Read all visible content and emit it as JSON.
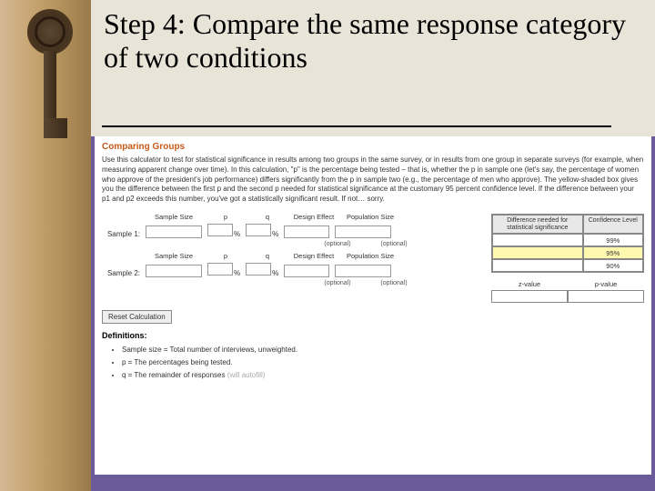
{
  "slide": {
    "title": "Step 4: Compare the same response category of two conditions"
  },
  "panel": {
    "heading": "Comparing Groups",
    "intro": "Use this calculator to test for statistical significance in results among two groups in the same survey, or in results from one group in separate surveys (for example, when measuring apparent change over time). In this calculation, \"p\" is the percentage being tested – that is, whether the p in sample one (let's say, the percentage of women who approve of the president's job performance) differs significantly from the p in sample two (e.g., the percentage of men who approve). The yellow-shaded box gives you the difference between the first p and the second p needed for statistical significance at the customary 95 percent confidence level. If the difference between your p1 and p2 exceeds this number, you've got a statistically significant result. If not… sorry.",
    "cols": {
      "sample": "Sample Size",
      "p": "p",
      "q": "q",
      "design": "Design Effect",
      "pop": "Population Size"
    },
    "rows": {
      "s1": "Sample 1:",
      "s2": "Sample 2:"
    },
    "hints": {
      "optional": "(optional)"
    },
    "right": {
      "h1": "Difference needed for statistical significance",
      "h2": "Confidence Level",
      "conf99": "99%",
      "conf95": "95%",
      "conf90": "90%",
      "zlabel": "z-value",
      "plabel": "p-value"
    },
    "reset": "Reset Calculation",
    "defs": {
      "heading": "Definitions:",
      "d1": "Sample size = Total number of interviews, unweighted.",
      "d2": "p = The percentages being tested.",
      "d3_a": "q = The remainder of responses ",
      "d3_b": "(will autofill)"
    },
    "pct": "%"
  }
}
